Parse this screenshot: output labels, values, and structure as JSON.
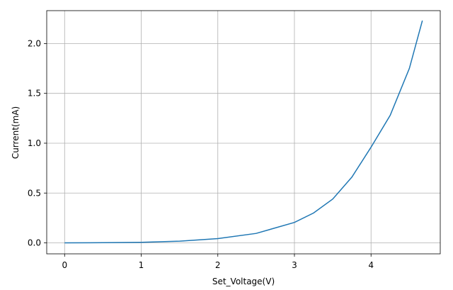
{
  "chart_data": {
    "type": "line",
    "x_label": "Set_Voltage(V)",
    "y_label": "Current(mA)",
    "x": [
      0,
      0.5,
      1,
      1.5,
      2,
      2.5,
      3,
      3.25,
      3.5,
      3.75,
      4,
      4.25,
      4.5,
      4.67
    ],
    "series": [
      {
        "name": "Current",
        "color": "#1f77b4",
        "values": [
          0,
          0.002,
          0.006,
          0.017,
          0.043,
          0.095,
          0.205,
          0.3,
          0.44,
          0.66,
          0.96,
          1.28,
          1.75,
          2.23
        ]
      }
    ],
    "xlim": [
      -0.2335,
      4.9035
    ],
    "ylim": [
      -0.11,
      2.33
    ],
    "xticks": [
      0,
      1,
      2,
      3,
      4
    ],
    "yticks": [
      {
        "value": 0,
        "label": "0.0"
      },
      {
        "value": 0.5,
        "label": "0.5"
      },
      {
        "value": 1,
        "label": "1.0"
      },
      {
        "value": 1.5,
        "label": "1.5"
      },
      {
        "value": 2,
        "label": "2.0"
      }
    ],
    "grid": true
  }
}
